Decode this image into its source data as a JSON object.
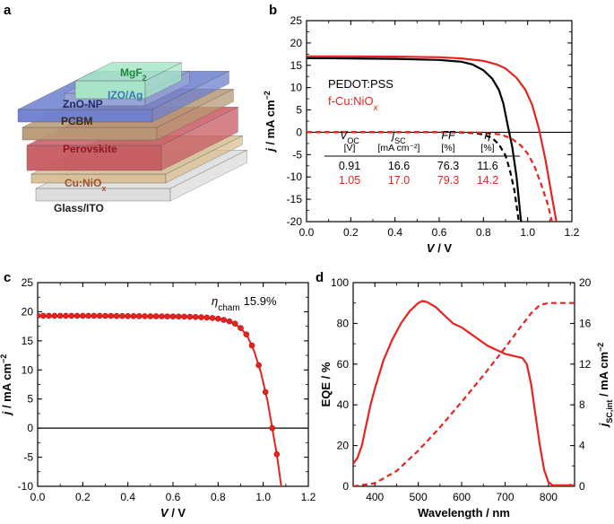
{
  "panels": {
    "a": "a",
    "b": "b",
    "c": "c",
    "d": "d"
  },
  "colors": {
    "red": "#e8231f",
    "black": "#000000"
  },
  "panel_a": {
    "type": "device-schematic",
    "layers": [
      {
        "label": "Glass/ITO",
        "color": "#dcdcdc",
        "text_color": "#222222"
      },
      {
        "label": "Cu:NiO",
        "sub": "x",
        "color": "#d9bf95",
        "text_color": "#a0522d"
      },
      {
        "label": "Perovskite",
        "color": "#c75a62",
        "text_color": "#8b1a24"
      },
      {
        "label": "PCBM",
        "color": "#b89a76",
        "text_color": "#3a2a1a"
      },
      {
        "label": "ZnO-NP",
        "color": "#6d7fd0",
        "text_color": "#1e2a6e"
      },
      {
        "label": "IZO/Ag",
        "color": "#9aa6d6",
        "text_color": "#3a78b8"
      },
      {
        "label": "MgF",
        "sub": "2",
        "color": "#a8e8c8",
        "text_color": "#1f8a3a"
      }
    ]
  },
  "chart_data": [
    {
      "panel": "b",
      "type": "line",
      "xlabel": "V / V",
      "ylabel": "j / mA cm⁻²",
      "xlim": [
        0,
        1.2
      ],
      "ylim": [
        -20,
        25
      ],
      "xticks": [
        "0.0",
        "0.2",
        "0.4",
        "0.6",
        "0.8",
        "1.0",
        "1.2"
      ],
      "yticks": [
        "-20",
        "-15",
        "-10",
        "-5",
        "0",
        "5",
        "10",
        "15",
        "20",
        "25"
      ],
      "legend": [
        {
          "label": "PEDOT:PSS",
          "color": "#000000"
        },
        {
          "label": "f-Cu:NiO",
          "sub": "x",
          "color": "#e8231f"
        }
      ],
      "series": [
        {
          "name": "PEDOT:PSS",
          "style": "solid",
          "color": "#000000",
          "points": [
            [
              0,
              16.6
            ],
            [
              0.2,
              16.55
            ],
            [
              0.4,
              16.45
            ],
            [
              0.6,
              16.2
            ],
            [
              0.7,
              15.8
            ],
            [
              0.75,
              15.2
            ],
            [
              0.8,
              13.9
            ],
            [
              0.84,
              12.0
            ],
            [
              0.87,
              9.5
            ],
            [
              0.89,
              6.5
            ],
            [
              0.91,
              1.5
            ],
            [
              0.93,
              -3.2
            ],
            [
              0.95,
              -10
            ],
            [
              0.97,
              -20
            ]
          ]
        },
        {
          "name": "f-Cu:NiO",
          "style": "solid",
          "color": "#e8231f",
          "points": [
            [
              0,
              17.0
            ],
            [
              0.2,
              17.0
            ],
            [
              0.4,
              16.95
            ],
            [
              0.6,
              16.8
            ],
            [
              0.7,
              16.55
            ],
            [
              0.8,
              16.0
            ],
            [
              0.86,
              15.2
            ],
            [
              0.9,
              14.3
            ],
            [
              0.95,
              12.2
            ],
            [
              0.99,
              9.5
            ],
            [
              1.02,
              6.2
            ],
            [
              1.05,
              1.0
            ],
            [
              1.08,
              -6
            ],
            [
              1.11,
              -14.5
            ],
            [
              1.13,
              -20
            ]
          ]
        },
        {
          "name": "PEDOT:PSS dark",
          "style": "dashed",
          "color": "#000000",
          "points": [
            [
              0,
              0
            ],
            [
              0.6,
              0
            ],
            [
              0.7,
              -0.05
            ],
            [
              0.76,
              -0.2
            ],
            [
              0.8,
              -0.5
            ],
            [
              0.84,
              -1.3
            ],
            [
              0.87,
              -2.7
            ],
            [
              0.9,
              -5.2
            ],
            [
              0.92,
              -8.5
            ],
            [
              0.94,
              -13
            ],
            [
              0.96,
              -20
            ]
          ]
        },
        {
          "name": "f-Cu:NiO dark",
          "style": "dashed",
          "color": "#e8231f",
          "points": [
            [
              0,
              0
            ],
            [
              0.7,
              0
            ],
            [
              0.8,
              -0.1
            ],
            [
              0.88,
              -0.5
            ],
            [
              0.93,
              -1.5
            ],
            [
              0.97,
              -3.0
            ],
            [
              1.0,
              -4.8
            ],
            [
              1.03,
              -7.5
            ],
            [
              1.06,
              -11.5
            ],
            [
              1.09,
              -16
            ],
            [
              1.11,
              -20
            ]
          ]
        }
      ],
      "table": {
        "headers": [
          "V",
          "j",
          "FF",
          "η"
        ],
        "header_subs": [
          "OC",
          "SC",
          "",
          ""
        ],
        "units": [
          "[V]",
          "[mA cm⁻²]",
          "[%]",
          "[%]"
        ],
        "rows": [
          {
            "values": [
              "0.91",
              "16.6",
              "76.3",
              "11.6"
            ],
            "color": "#000000"
          },
          {
            "values": [
              "1.05",
              "17.0",
              "79.3",
              "14.2"
            ],
            "color": "#e8231f"
          }
        ]
      }
    },
    {
      "panel": "c",
      "type": "line",
      "xlabel": "V / V",
      "ylabel": "j / mA cm⁻²",
      "xlim": [
        0,
        1.2
      ],
      "ylim": [
        -10,
        25
      ],
      "xticks": [
        "0.0",
        "0.2",
        "0.4",
        "0.6",
        "0.8",
        "1.0",
        "1.2"
      ],
      "yticks": [
        "-10",
        "-5",
        "0",
        "5",
        "10",
        "15",
        "20",
        "25"
      ],
      "annotation": {
        "symbol": "η",
        "sub": "cham",
        "value": "15.9%"
      },
      "series": [
        {
          "name": "",
          "style": "solid-markers",
          "color": "#e8231f",
          "points": [
            [
              0,
              19.3
            ],
            [
              0.2,
              19.3
            ],
            [
              0.4,
              19.25
            ],
            [
              0.6,
              19.2
            ],
            [
              0.7,
              19.1
            ],
            [
              0.8,
              18.8
            ],
            [
              0.86,
              18.2
            ],
            [
              0.9,
              17.2
            ],
            [
              0.93,
              15.8
            ],
            [
              0.96,
              13.2
            ],
            [
              0.99,
              9.5
            ],
            [
              1.02,
              4.5
            ],
            [
              1.04,
              0
            ],
            [
              1.06,
              -4.5
            ],
            [
              1.08,
              -10
            ]
          ],
          "markers": [
            [
              0,
              19.3
            ],
            [
              0.025,
              19.3
            ],
            [
              0.05,
              19.3
            ],
            [
              0.075,
              19.3
            ],
            [
              0.1,
              19.3
            ],
            [
              0.125,
              19.3
            ],
            [
              0.15,
              19.3
            ],
            [
              0.175,
              19.3
            ],
            [
              0.2,
              19.3
            ],
            [
              0.225,
              19.3
            ],
            [
              0.25,
              19.3
            ],
            [
              0.275,
              19.3
            ],
            [
              0.3,
              19.28
            ],
            [
              0.325,
              19.28
            ],
            [
              0.35,
              19.27
            ],
            [
              0.375,
              19.27
            ],
            [
              0.4,
              19.25
            ],
            [
              0.425,
              19.25
            ],
            [
              0.45,
              19.24
            ],
            [
              0.475,
              19.23
            ],
            [
              0.5,
              19.22
            ],
            [
              0.525,
              19.22
            ],
            [
              0.55,
              19.21
            ],
            [
              0.575,
              19.2
            ],
            [
              0.6,
              19.2
            ],
            [
              0.625,
              19.18
            ],
            [
              0.65,
              19.16
            ],
            [
              0.675,
              19.13
            ],
            [
              0.7,
              19.1
            ],
            [
              0.725,
              19.05
            ],
            [
              0.75,
              19.0
            ],
            [
              0.775,
              18.92
            ],
            [
              0.8,
              18.8
            ],
            [
              0.825,
              18.6
            ],
            [
              0.85,
              18.35
            ],
            [
              0.875,
              17.95
            ],
            [
              0.9,
              17.2
            ],
            [
              0.925,
              16.1
            ],
            [
              0.95,
              14.2
            ],
            [
              0.98,
              10.8
            ],
            [
              1.01,
              6.2
            ],
            [
              1.04,
              0
            ],
            [
              1.06,
              -4.5
            ]
          ]
        }
      ]
    },
    {
      "panel": "d",
      "type": "line",
      "xlabel": "Wavelength / nm",
      "ylabel": "EQE / %",
      "y2label": "j SC,int / mA cm⁻²",
      "y2label_main": "j",
      "y2label_sub": "SC,int",
      "y2label_unit": " / mA cm⁻²",
      "xlim": [
        350,
        860
      ],
      "ylim": [
        0,
        100
      ],
      "y2lim": [
        0,
        20
      ],
      "xticks": [
        "400",
        "500",
        "600",
        "700",
        "800"
      ],
      "xtick_values": [
        400,
        500,
        600,
        700,
        800
      ],
      "yticks": [
        "0",
        "20",
        "40",
        "60",
        "80",
        "100"
      ],
      "y2ticks": [
        "0",
        "4",
        "8",
        "12",
        "16",
        "20"
      ],
      "series": [
        {
          "name": "EQE",
          "axis": "left",
          "style": "solid",
          "color": "#e8231f",
          "points": [
            [
              350,
              11
            ],
            [
              360,
              14
            ],
            [
              370,
              20
            ],
            [
              380,
              30
            ],
            [
              390,
              40
            ],
            [
              400,
              48
            ],
            [
              420,
              62
            ],
            [
              440,
              72
            ],
            [
              460,
              80
            ],
            [
              480,
              86
            ],
            [
              500,
              90
            ],
            [
              510,
              91
            ],
            [
              520,
              90.5
            ],
            [
              540,
              88
            ],
            [
              560,
              84
            ],
            [
              580,
              80
            ],
            [
              600,
              78
            ],
            [
              620,
              75
            ],
            [
              640,
              72
            ],
            [
              660,
              69
            ],
            [
              680,
              67
            ],
            [
              700,
              65
            ],
            [
              720,
              64
            ],
            [
              740,
              63
            ],
            [
              750,
              60
            ],
            [
              760,
              50
            ],
            [
              770,
              35
            ],
            [
              780,
              20
            ],
            [
              790,
              8
            ],
            [
              800,
              2
            ],
            [
              810,
              0.5
            ],
            [
              860,
              0.5
            ]
          ]
        },
        {
          "name": "j SC,int",
          "axis": "right",
          "style": "dashed",
          "color": "#e8231f",
          "points": [
            [
              350,
              0
            ],
            [
              400,
              0.3
            ],
            [
              450,
              1.5
            ],
            [
              500,
              3.5
            ],
            [
              550,
              5.8
            ],
            [
              600,
              8.3
            ],
            [
              650,
              10.9
            ],
            [
              700,
              13.6
            ],
            [
              740,
              15.9
            ],
            [
              760,
              17.0
            ],
            [
              780,
              17.8
            ],
            [
              800,
              18.0
            ],
            [
              860,
              18.0
            ]
          ]
        }
      ]
    }
  ]
}
